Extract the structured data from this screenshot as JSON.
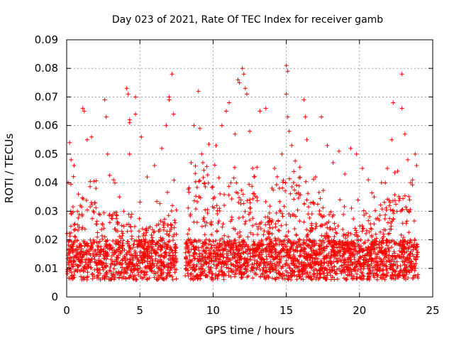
{
  "chart_data": {
    "type": "scatter",
    "title": "Day 023 of 2021, Rate Of TEC Index for receiver gamb",
    "xlabel": "GPS time / hours",
    "ylabel": "ROTI / TECUs",
    "xlim": [
      0,
      25
    ],
    "ylim": [
      0,
      0.09
    ],
    "xticks": [
      0,
      5,
      10,
      15,
      20,
      25
    ],
    "xtick_labels": [
      "0",
      "5",
      "10",
      "15",
      "20",
      "25"
    ],
    "yticks": [
      0,
      0.01,
      0.02,
      0.03,
      0.04,
      0.05,
      0.06,
      0.07,
      0.08,
      0.09
    ],
    "ytick_labels": [
      "0",
      "0.01",
      "0.02",
      "0.03",
      "0.04",
      "0.05",
      "0.06",
      "0.07",
      "0.08",
      "0.09"
    ],
    "grid": true,
    "marker": "+",
    "color": "#ff0000",
    "data_gap_hours": [
      7.5,
      8.1
    ],
    "series": [
      {
        "name": "ROTI",
        "points": [
          [
            0.1,
            0.04
          ],
          [
            0.2,
            0.054
          ],
          [
            0.3,
            0.048
          ],
          [
            0.5,
            0.046
          ],
          [
            0.8,
            0.036
          ],
          [
            1.1,
            0.066
          ],
          [
            1.2,
            0.065
          ],
          [
            1.4,
            0.055
          ],
          [
            1.7,
            0.056
          ],
          [
            2.0,
            0.038
          ],
          [
            2.6,
            0.069
          ],
          [
            2.7,
            0.063
          ],
          [
            2.8,
            0.05
          ],
          [
            3.2,
            0.041
          ],
          [
            3.6,
            0.035
          ],
          [
            4.1,
            0.073
          ],
          [
            4.2,
            0.071
          ],
          [
            4.3,
            0.062
          ],
          [
            4.3,
            0.061
          ],
          [
            4.7,
            0.07
          ],
          [
            4.7,
            0.064
          ],
          [
            4.3,
            0.05
          ],
          [
            5.1,
            0.056
          ],
          [
            5.5,
            0.042
          ],
          [
            6.0,
            0.046
          ],
          [
            6.5,
            0.052
          ],
          [
            6.8,
            0.06
          ],
          [
            7.0,
            0.07
          ],
          [
            7.2,
            0.078
          ],
          [
            7.3,
            0.064
          ],
          [
            7.0,
            0.069
          ],
          [
            8.5,
            0.047
          ],
          [
            8.7,
            0.06
          ],
          [
            9.0,
            0.072
          ],
          [
            9.1,
            0.059
          ],
          [
            9.3,
            0.047
          ],
          [
            10.2,
            0.053
          ],
          [
            10.6,
            0.06
          ],
          [
            10.9,
            0.065
          ],
          [
            11.1,
            0.068
          ],
          [
            11.5,
            0.057
          ],
          [
            11.7,
            0.076
          ],
          [
            11.8,
            0.075
          ],
          [
            12.0,
            0.08
          ],
          [
            12.1,
            0.078
          ],
          [
            12.2,
            0.073
          ],
          [
            12.3,
            0.071
          ],
          [
            12.5,
            0.058
          ],
          [
            12.7,
            0.045
          ],
          [
            13.2,
            0.065
          ],
          [
            13.6,
            0.066
          ],
          [
            14.2,
            0.045
          ],
          [
            14.7,
            0.05
          ],
          [
            15.0,
            0.081
          ],
          [
            15.1,
            0.079
          ],
          [
            15.0,
            0.071
          ],
          [
            15.1,
            0.063
          ],
          [
            15.2,
            0.058
          ],
          [
            15.5,
            0.04
          ],
          [
            16.2,
            0.069
          ],
          [
            16.3,
            0.063
          ],
          [
            16.4,
            0.055
          ],
          [
            17.0,
            0.042
          ],
          [
            17.4,
            0.063
          ],
          [
            17.8,
            0.053
          ],
          [
            18.2,
            0.047
          ],
          [
            18.6,
            0.051
          ],
          [
            19.0,
            0.043
          ],
          [
            19.4,
            0.052
          ],
          [
            19.8,
            0.05
          ],
          [
            20.2,
            0.045
          ],
          [
            20.6,
            0.041
          ],
          [
            21.0,
            0.035
          ],
          [
            21.5,
            0.04
          ],
          [
            21.9,
            0.045
          ],
          [
            22.2,
            0.055
          ],
          [
            22.3,
            0.068
          ],
          [
            22.6,
            0.044
          ],
          [
            22.9,
            0.078
          ],
          [
            22.9,
            0.066
          ],
          [
            23.1,
            0.057
          ],
          [
            23.3,
            0.048
          ],
          [
            23.5,
            0.04
          ],
          [
            23.8,
            0.05
          ],
          [
            23.9,
            0.046
          ]
        ]
      }
    ]
  }
}
